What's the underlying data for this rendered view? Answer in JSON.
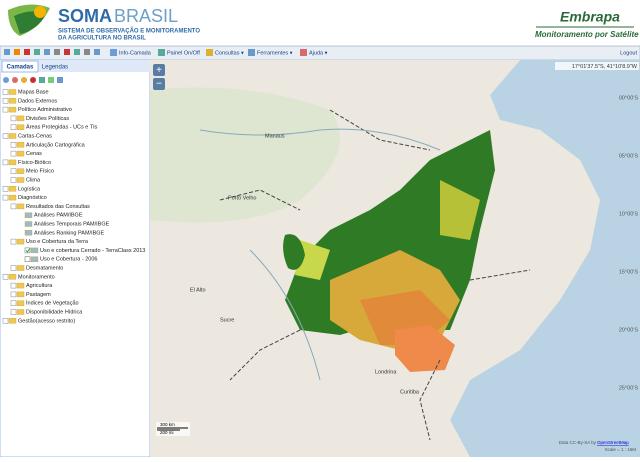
{
  "header": {
    "brand_bold": "SOMA",
    "brand_light": "BRASIL",
    "subtitle": [
      "SISTEMA DE OBSERVAÇÃO E MONITORAMENTO",
      "DA AGRICULTURA NO BRASIL"
    ],
    "partner": "Embrapa",
    "partner_tagline": "Monitoramento por Satélite"
  },
  "toolbar": {
    "items": [
      "Info-Camada",
      "Painel On/Off",
      "Consultas ▾",
      "Ferramentes ▾",
      "Ajuda ▾"
    ],
    "logout": "Logout"
  },
  "panel": {
    "tabs": [
      "Camadas",
      "Legendas"
    ],
    "tree": [
      {
        "label": "Mapas Base"
      },
      {
        "label": "Dados Externos"
      },
      {
        "label": "Político Administrativo",
        "children": [
          {
            "label": "Divisões Políticas"
          },
          {
            "label": "Áreas Protegidas - UCs e TIs"
          }
        ]
      },
      {
        "label": "Cartas-Cenas",
        "children": [
          {
            "label": "Articulação Cartográfica"
          },
          {
            "label": "Cenas"
          }
        ]
      },
      {
        "label": "Físico-Biótico",
        "children": [
          {
            "label": "Meio Físico"
          },
          {
            "label": "Clima"
          }
        ]
      },
      {
        "label": "Logística"
      },
      {
        "label": "Diagnóstico",
        "children": [
          {
            "label": "Resultados das Consultas",
            "children": [
              {
                "label": "Análises PAM/IBGE"
              },
              {
                "label": "Análises Temporais PAM/IBGE"
              },
              {
                "label": "Análises Ranking PAM/IBGE"
              }
            ]
          },
          {
            "label": "Uso e Cobertura da Terra",
            "children": [
              {
                "label": "Uso e cobertura Cerrado - TerraClass 2013",
                "checked": true
              },
              {
                "label": "Uso e Cobertura - 2006",
                "checked": false
              }
            ]
          },
          {
            "label": "Desmatamento"
          }
        ]
      },
      {
        "label": "Monitoramento",
        "children": [
          {
            "label": "Agricultura"
          },
          {
            "label": "Pastagem"
          },
          {
            "label": "Índices de Vegetação"
          },
          {
            "label": "Disponibilidade Hídrica"
          }
        ]
      },
      {
        "label": "Gestão(acesso restrito)"
      }
    ]
  },
  "map": {
    "coordinates": "17°01'37.5\"S, 41°10'8.9\"W",
    "zoom_in": "+",
    "zoom_out": "−",
    "latitudes": [
      "00°00'S",
      "05°00'S",
      "10°00'S",
      "15°00'S",
      "20°00'S",
      "25°00'S"
    ],
    "places": [
      "Manaus",
      "Porto Velho",
      "El Alto",
      "Sucre",
      "Londrina",
      "Curitiba"
    ],
    "scale_bar": [
      "300 km",
      "200 mi"
    ],
    "attribution": "Data CC-By-SA by",
    "attribution_link": "OpenStreetMap",
    "scale": "Scale = 1 : 16M"
  }
}
